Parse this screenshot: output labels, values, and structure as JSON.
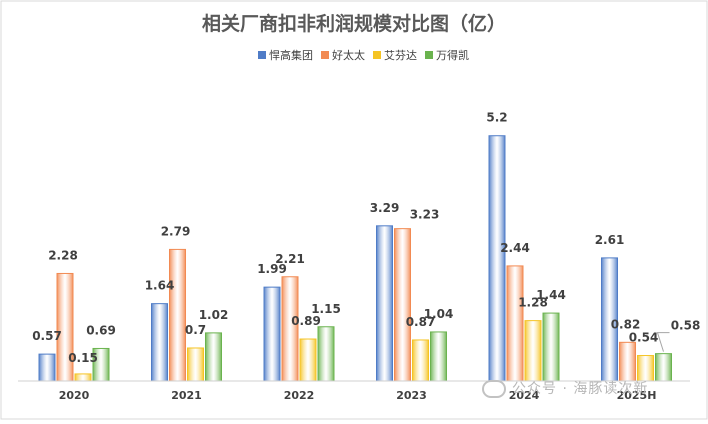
{
  "chart_data": {
    "type": "bar",
    "title": "相关厂商扣非利润规模对比图（亿）",
    "categories": [
      "2020",
      "2021",
      "2022",
      "2023",
      "2024",
      "2025H"
    ],
    "series": [
      {
        "name": "悍高集团",
        "values": [
          0.57,
          1.64,
          1.99,
          3.29,
          5.2,
          2.61
        ],
        "color": "#4f7cc7"
      },
      {
        "name": "好太太",
        "values": [
          2.28,
          2.79,
          2.21,
          3.23,
          2.44,
          0.82
        ],
        "color": "#f28a52"
      },
      {
        "name": "艾芬达",
        "values": [
          0.15,
          0.7,
          0.89,
          0.87,
          1.28,
          0.54
        ],
        "color": "#f5c424"
      },
      {
        "name": "万得凯",
        "values": [
          0.69,
          1.02,
          1.15,
          1.04,
          1.44,
          0.58
        ],
        "color": "#6ab34e"
      }
    ],
    "ylim": [
      0,
      6
    ],
    "grid": false,
    "legend_position": "top-center"
  },
  "watermark": {
    "text": "公众号 · 海豚读次新"
  }
}
